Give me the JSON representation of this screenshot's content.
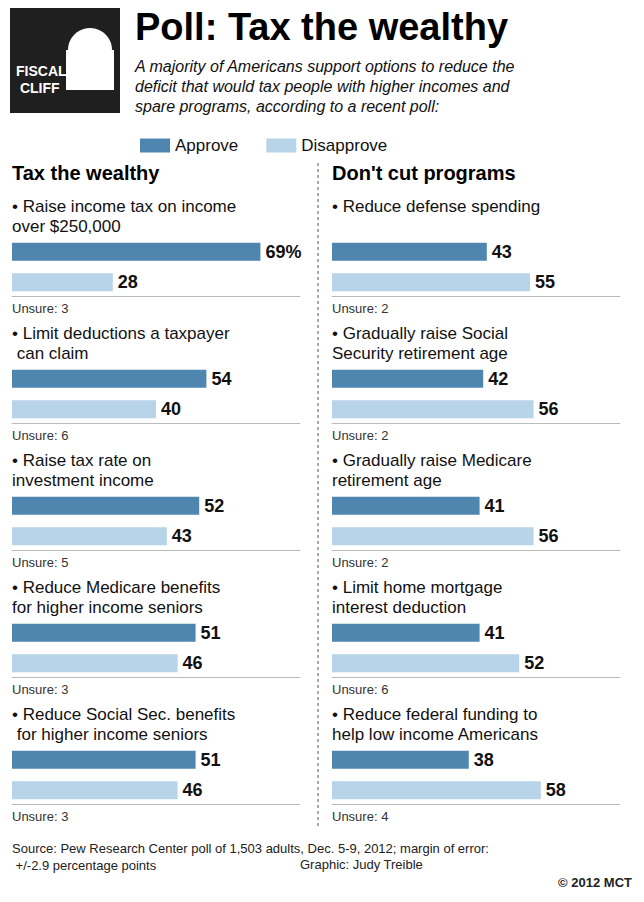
{
  "header": {
    "title": "Poll: Tax the wealthy",
    "subtitle": "A majority of Americans support options to reduce the deficit that would tax people with higher incomes and spare programs, according to a recent poll:",
    "icon_text": "FISCAL CLIFF"
  },
  "panels": [
    "Tax the wealthy",
    "Don't cut programs"
  ],
  "footer": {
    "source": "Source: Pew Research Center poll of 1,503 adults, Dec. 5-9, 2012; margin of error: +/-2.9 percentage points",
    "credit": "Graphic: Judy Treible",
    "copyright": "© 2012 MCT"
  },
  "chart_data": [
    {
      "type": "bar",
      "orientation": "horizontal",
      "title": "• Raise income tax on income over $250,000",
      "categories": [
        null
      ],
      "series": [
        {
          "name": "Approve",
          "color": "#4f86b0",
          "values": [
            69
          ],
          "value_labels": [
            "69%"
          ]
        },
        {
          "name": "Disapprove",
          "color": "#b7d4e8",
          "values": [
            28
          ]
        }
      ],
      "xlim": [
        0,
        80
      ],
      "tick_labels": false,
      "grid": false,
      "data_labels": true,
      "legend": "top",
      "annotation": "Unsure: 3"
    },
    {
      "type": "bar",
      "orientation": "horizontal",
      "title": "• Limit deductions a taxpayer can claim",
      "categories": [
        null
      ],
      "series": [
        {
          "name": "Approve",
          "color": "#4f86b0",
          "values": [
            54
          ]
        },
        {
          "name": "Disapprove",
          "color": "#b7d4e8",
          "values": [
            40
          ]
        }
      ],
      "xlim": [
        0,
        80
      ],
      "tick_labels": false,
      "grid": false,
      "data_labels": true,
      "annotation": "Unsure: 6"
    },
    {
      "type": "bar",
      "orientation": "horizontal",
      "title": "• Raise tax rate on investment income",
      "categories": [
        null
      ],
      "series": [
        {
          "name": "Approve",
          "color": "#4f86b0",
          "values": [
            52
          ]
        },
        {
          "name": "Disapprove",
          "color": "#b7d4e8",
          "values": [
            43
          ]
        }
      ],
      "xlim": [
        0,
        80
      ],
      "tick_labels": false,
      "grid": false,
      "data_labels": true,
      "annotation": "Unsure: 5"
    },
    {
      "type": "bar",
      "orientation": "horizontal",
      "title": "• Reduce Medicare benefits for higher income seniors",
      "categories": [
        null
      ],
      "series": [
        {
          "name": "Approve",
          "color": "#4f86b0",
          "values": [
            51
          ]
        },
        {
          "name": "Disapprove",
          "color": "#b7d4e8",
          "values": [
            46
          ]
        }
      ],
      "xlim": [
        0,
        80
      ],
      "tick_labels": false,
      "grid": false,
      "data_labels": true,
      "annotation": "Unsure: 3"
    },
    {
      "type": "bar",
      "orientation": "horizontal",
      "title": "• Reduce Social Sec. benefits for higher income seniors",
      "categories": [
        null
      ],
      "series": [
        {
          "name": "Approve",
          "color": "#4f86b0",
          "values": [
            51
          ]
        },
        {
          "name": "Disapprove",
          "color": "#b7d4e8",
          "values": [
            46
          ]
        }
      ],
      "xlim": [
        0,
        80
      ],
      "tick_labels": false,
      "grid": false,
      "data_labels": true,
      "annotation": "Unsure: 3"
    },
    {
      "type": "bar",
      "orientation": "horizontal",
      "title": "• Reduce defense spending",
      "categories": [
        null
      ],
      "series": [
        {
          "name": "Approve",
          "color": "#4f86b0",
          "values": [
            43
          ]
        },
        {
          "name": "Disapprove",
          "color": "#b7d4e8",
          "values": [
            55
          ]
        }
      ],
      "xlim": [
        0,
        80
      ],
      "tick_labels": false,
      "grid": false,
      "data_labels": true,
      "annotation": "Unsure: 2"
    },
    {
      "type": "bar",
      "orientation": "horizontal",
      "title": "• Gradually raise Social Security retirement age",
      "categories": [
        null
      ],
      "series": [
        {
          "name": "Approve",
          "color": "#4f86b0",
          "values": [
            42
          ]
        },
        {
          "name": "Disapprove",
          "color": "#b7d4e8",
          "values": [
            56
          ]
        }
      ],
      "xlim": [
        0,
        80
      ],
      "tick_labels": false,
      "grid": false,
      "data_labels": true,
      "annotation": "Unsure: 2"
    },
    {
      "type": "bar",
      "orientation": "horizontal",
      "title": "• Gradually raise Medicare retirement age",
      "categories": [
        null
      ],
      "series": [
        {
          "name": "Approve",
          "color": "#4f86b0",
          "values": [
            41
          ]
        },
        {
          "name": "Disapprove",
          "color": "#b7d4e8",
          "values": [
            56
          ]
        }
      ],
      "xlim": [
        0,
        80
      ],
      "tick_labels": false,
      "grid": false,
      "data_labels": true,
      "annotation": "Unsure: 2"
    },
    {
      "type": "bar",
      "orientation": "horizontal",
      "title": "• Limit home mortgage interest deduction",
      "categories": [
        null
      ],
      "series": [
        {
          "name": "Approve",
          "color": "#4f86b0",
          "values": [
            41
          ]
        },
        {
          "name": "Disapprove",
          "color": "#b7d4e8",
          "values": [
            52
          ]
        }
      ],
      "xlim": [
        0,
        80
      ],
      "tick_labels": false,
      "grid": false,
      "data_labels": true,
      "annotation": "Unsure: 6"
    },
    {
      "type": "bar",
      "orientation": "horizontal",
      "title": "• Reduce federal funding to help low income Americans",
      "categories": [
        null
      ],
      "series": [
        {
          "name": "Approve",
          "color": "#4f86b0",
          "values": [
            38
          ]
        },
        {
          "name": "Disapprove",
          "color": "#b7d4e8",
          "values": [
            58
          ]
        }
      ],
      "xlim": [
        0,
        80
      ],
      "tick_labels": false,
      "grid": false,
      "data_labels": true,
      "annotation": "Unsure: 4"
    }
  ]
}
